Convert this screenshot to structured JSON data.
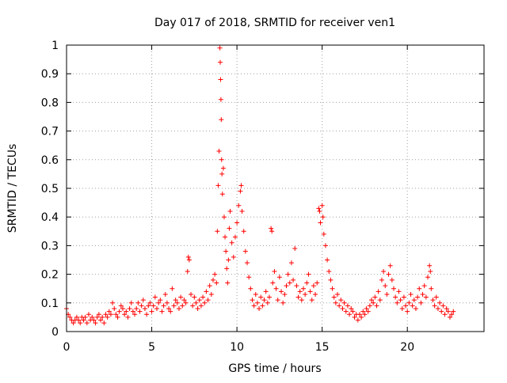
{
  "chart_data": {
    "type": "scatter",
    "title": "Day 017 of 2018, SRMTID for receiver ven1",
    "xlabel": "GPS time / hours",
    "ylabel": "SRMTID / TECUs",
    "xlim": [
      0,
      24.5
    ],
    "ylim": [
      0,
      1
    ],
    "xticks": [
      0,
      5,
      10,
      15,
      20
    ],
    "xtick_labels": [
      "0",
      "5",
      "10",
      "15",
      "20"
    ],
    "yticks": [
      0,
      0.1,
      0.2,
      0.3,
      0.4,
      0.5,
      0.6,
      0.7,
      0.8,
      0.9,
      1
    ],
    "ytick_labels": [
      "0",
      "0.1",
      "0.2",
      "0.3",
      "0.4",
      "0.5",
      "0.6",
      "0.7",
      "0.8",
      "0.9",
      "1"
    ],
    "grid": true,
    "marker": "+",
    "color": "#ff0000",
    "series": [
      {
        "name": "ven1",
        "points": [
          [
            0.0,
            0.08
          ],
          [
            0.1,
            0.06
          ],
          [
            0.2,
            0.05
          ],
          [
            0.3,
            0.04
          ],
          [
            0.4,
            0.03
          ],
          [
            0.5,
            0.04
          ],
          [
            0.6,
            0.05
          ],
          [
            0.7,
            0.04
          ],
          [
            0.8,
            0.03
          ],
          [
            0.9,
            0.05
          ],
          [
            1.0,
            0.04
          ],
          [
            1.1,
            0.05
          ],
          [
            1.2,
            0.03
          ],
          [
            1.3,
            0.06
          ],
          [
            1.4,
            0.04
          ],
          [
            1.5,
            0.05
          ],
          [
            1.6,
            0.04
          ],
          [
            1.7,
            0.03
          ],
          [
            1.8,
            0.05
          ],
          [
            1.9,
            0.06
          ],
          [
            2.0,
            0.04
          ],
          [
            2.1,
            0.05
          ],
          [
            2.2,
            0.03
          ],
          [
            2.3,
            0.06
          ],
          [
            2.4,
            0.05
          ],
          [
            2.5,
            0.07
          ],
          [
            2.6,
            0.06
          ],
          [
            2.7,
            0.1
          ],
          [
            2.8,
            0.08
          ],
          [
            2.9,
            0.06
          ],
          [
            3.0,
            0.05
          ],
          [
            3.1,
            0.07
          ],
          [
            3.2,
            0.09
          ],
          [
            3.3,
            0.08
          ],
          [
            3.4,
            0.06
          ],
          [
            3.5,
            0.07
          ],
          [
            3.6,
            0.05
          ],
          [
            3.7,
            0.08
          ],
          [
            3.8,
            0.1
          ],
          [
            3.9,
            0.07
          ],
          [
            4.0,
            0.06
          ],
          [
            4.1,
            0.08
          ],
          [
            4.2,
            0.1
          ],
          [
            4.3,
            0.07
          ],
          [
            4.4,
            0.09
          ],
          [
            4.5,
            0.11
          ],
          [
            4.6,
            0.08
          ],
          [
            4.7,
            0.06
          ],
          [
            4.8,
            0.09
          ],
          [
            4.9,
            0.1
          ],
          [
            5.0,
            0.07
          ],
          [
            5.1,
            0.09
          ],
          [
            5.2,
            0.12
          ],
          [
            5.3,
            0.08
          ],
          [
            5.4,
            0.1
          ],
          [
            5.5,
            0.11
          ],
          [
            5.6,
            0.07
          ],
          [
            5.7,
            0.09
          ],
          [
            5.8,
            0.13
          ],
          [
            5.9,
            0.1
          ],
          [
            6.0,
            0.08
          ],
          [
            6.1,
            0.07
          ],
          [
            6.2,
            0.15
          ],
          [
            6.3,
            0.09
          ],
          [
            6.4,
            0.11
          ],
          [
            6.5,
            0.1
          ],
          [
            6.6,
            0.08
          ],
          [
            6.7,
            0.12
          ],
          [
            6.8,
            0.09
          ],
          [
            6.9,
            0.11
          ],
          [
            7.0,
            0.1
          ],
          [
            7.1,
            0.21
          ],
          [
            7.15,
            0.26
          ],
          [
            7.2,
            0.25
          ],
          [
            7.3,
            0.13
          ],
          [
            7.4,
            0.09
          ],
          [
            7.5,
            0.12
          ],
          [
            7.6,
            0.1
          ],
          [
            7.7,
            0.08
          ],
          [
            7.8,
            0.11
          ],
          [
            7.9,
            0.09
          ],
          [
            8.0,
            0.12
          ],
          [
            8.1,
            0.1
          ],
          [
            8.2,
            0.14
          ],
          [
            8.3,
            0.11
          ],
          [
            8.4,
            0.16
          ],
          [
            8.5,
            0.13
          ],
          [
            8.6,
            0.18
          ],
          [
            8.7,
            0.2
          ],
          [
            8.8,
            0.17
          ],
          [
            8.85,
            0.35
          ],
          [
            8.9,
            0.51
          ],
          [
            8.95,
            0.63
          ],
          [
            9.0,
            0.99
          ],
          [
            9.02,
            0.94
          ],
          [
            9.04,
            0.88
          ],
          [
            9.06,
            0.81
          ],
          [
            9.08,
            0.74
          ],
          [
            9.1,
            0.6
          ],
          [
            9.12,
            0.55
          ],
          [
            9.15,
            0.48
          ],
          [
            9.2,
            0.57
          ],
          [
            9.25,
            0.4
          ],
          [
            9.3,
            0.33
          ],
          [
            9.35,
            0.28
          ],
          [
            9.4,
            0.22
          ],
          [
            9.45,
            0.17
          ],
          [
            9.5,
            0.25
          ],
          [
            9.55,
            0.36
          ],
          [
            9.6,
            0.42
          ],
          [
            9.7,
            0.31
          ],
          [
            9.8,
            0.26
          ],
          [
            9.9,
            0.33
          ],
          [
            10.0,
            0.38
          ],
          [
            10.1,
            0.44
          ],
          [
            10.2,
            0.49
          ],
          [
            10.25,
            0.51
          ],
          [
            10.3,
            0.42
          ],
          [
            10.4,
            0.35
          ],
          [
            10.5,
            0.28
          ],
          [
            10.6,
            0.24
          ],
          [
            10.7,
            0.19
          ],
          [
            10.8,
            0.15
          ],
          [
            10.9,
            0.11
          ],
          [
            11.0,
            0.09
          ],
          [
            11.1,
            0.13
          ],
          [
            11.2,
            0.1
          ],
          [
            11.3,
            0.08
          ],
          [
            11.4,
            0.12
          ],
          [
            11.5,
            0.09
          ],
          [
            11.6,
            0.11
          ],
          [
            11.7,
            0.14
          ],
          [
            11.8,
            0.1
          ],
          [
            11.9,
            0.12
          ],
          [
            12.0,
            0.36
          ],
          [
            12.05,
            0.35
          ],
          [
            12.1,
            0.17
          ],
          [
            12.2,
            0.21
          ],
          [
            12.3,
            0.15
          ],
          [
            12.4,
            0.11
          ],
          [
            12.5,
            0.19
          ],
          [
            12.6,
            0.14
          ],
          [
            12.7,
            0.1
          ],
          [
            12.8,
            0.13
          ],
          [
            12.9,
            0.16
          ],
          [
            13.0,
            0.2
          ],
          [
            13.1,
            0.17
          ],
          [
            13.2,
            0.24
          ],
          [
            13.3,
            0.18
          ],
          [
            13.4,
            0.29
          ],
          [
            13.5,
            0.16
          ],
          [
            13.6,
            0.12
          ],
          [
            13.7,
            0.14
          ],
          [
            13.8,
            0.11
          ],
          [
            13.9,
            0.15
          ],
          [
            14.0,
            0.13
          ],
          [
            14.1,
            0.17
          ],
          [
            14.2,
            0.2
          ],
          [
            14.3,
            0.14
          ],
          [
            14.4,
            0.11
          ],
          [
            14.5,
            0.16
          ],
          [
            14.6,
            0.13
          ],
          [
            14.7,
            0.17
          ],
          [
            14.8,
            0.43
          ],
          [
            14.85,
            0.42
          ],
          [
            14.9,
            0.38
          ],
          [
            15.0,
            0.44
          ],
          [
            15.05,
            0.4
          ],
          [
            15.1,
            0.34
          ],
          [
            15.2,
            0.3
          ],
          [
            15.3,
            0.25
          ],
          [
            15.4,
            0.21
          ],
          [
            15.5,
            0.18
          ],
          [
            15.6,
            0.15
          ],
          [
            15.7,
            0.12
          ],
          [
            15.8,
            0.1
          ],
          [
            15.9,
            0.13
          ],
          [
            16.0,
            0.09
          ],
          [
            16.1,
            0.11
          ],
          [
            16.2,
            0.08
          ],
          [
            16.3,
            0.1
          ],
          [
            16.4,
            0.07
          ],
          [
            16.5,
            0.09
          ],
          [
            16.6,
            0.06
          ],
          [
            16.7,
            0.08
          ],
          [
            16.8,
            0.07
          ],
          [
            16.9,
            0.05
          ],
          [
            17.0,
            0.06
          ],
          [
            17.1,
            0.04
          ],
          [
            17.2,
            0.06
          ],
          [
            17.3,
            0.05
          ],
          [
            17.4,
            0.07
          ],
          [
            17.5,
            0.06
          ],
          [
            17.6,
            0.08
          ],
          [
            17.7,
            0.07
          ],
          [
            17.8,
            0.09
          ],
          [
            17.9,
            0.11
          ],
          [
            18.0,
            0.1
          ],
          [
            18.1,
            0.12
          ],
          [
            18.2,
            0.09
          ],
          [
            18.3,
            0.14
          ],
          [
            18.4,
            0.11
          ],
          [
            18.5,
            0.18
          ],
          [
            18.6,
            0.21
          ],
          [
            18.7,
            0.16
          ],
          [
            18.8,
            0.13
          ],
          [
            18.9,
            0.2
          ],
          [
            19.0,
            0.23
          ],
          [
            19.1,
            0.18
          ],
          [
            19.2,
            0.15
          ],
          [
            19.3,
            0.12
          ],
          [
            19.4,
            0.1
          ],
          [
            19.5,
            0.14
          ],
          [
            19.6,
            0.11
          ],
          [
            19.7,
            0.08
          ],
          [
            19.8,
            0.12
          ],
          [
            19.9,
            0.09
          ],
          [
            20.0,
            0.07
          ],
          [
            20.1,
            0.1
          ],
          [
            20.2,
            0.13
          ],
          [
            20.3,
            0.09
          ],
          [
            20.4,
            0.11
          ],
          [
            20.5,
            0.08
          ],
          [
            20.6,
            0.12
          ],
          [
            20.7,
            0.15
          ],
          [
            20.8,
            0.1
          ],
          [
            20.9,
            0.13
          ],
          [
            21.0,
            0.16
          ],
          [
            21.1,
            0.12
          ],
          [
            21.2,
            0.19
          ],
          [
            21.3,
            0.23
          ],
          [
            21.35,
            0.21
          ],
          [
            21.4,
            0.15
          ],
          [
            21.5,
            0.11
          ],
          [
            21.6,
            0.09
          ],
          [
            21.7,
            0.12
          ],
          [
            21.8,
            0.08
          ],
          [
            21.9,
            0.1
          ],
          [
            22.0,
            0.07
          ],
          [
            22.1,
            0.09
          ],
          [
            22.2,
            0.06
          ],
          [
            22.3,
            0.08
          ],
          [
            22.4,
            0.07
          ],
          [
            22.5,
            0.05
          ],
          [
            22.6,
            0.06
          ],
          [
            22.7,
            0.07
          ]
        ]
      }
    ]
  }
}
